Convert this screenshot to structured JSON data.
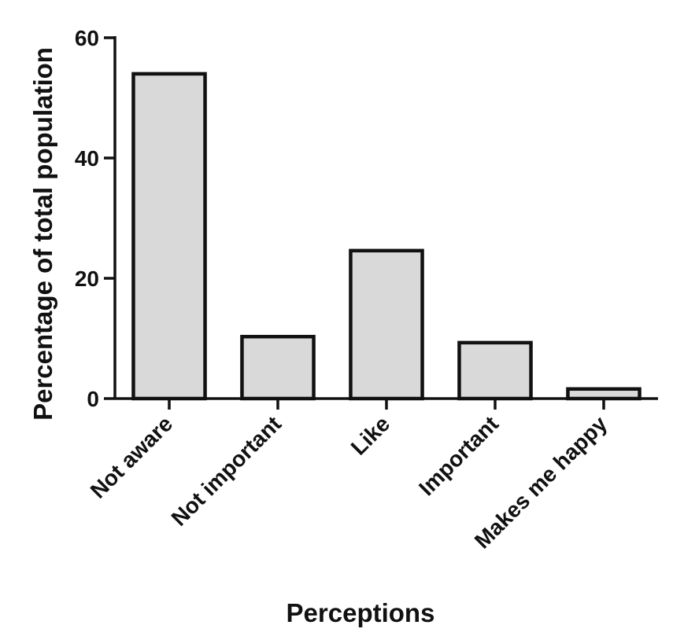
{
  "chart_data": {
    "type": "bar",
    "categories": [
      "Not aware",
      "Not important",
      "Like",
      "Important",
      "Makes me happy"
    ],
    "values": [
      54,
      10.3,
      24.6,
      9.3,
      1.6
    ],
    "xlabel": "Perceptions",
    "ylabel": "Percentage of total population",
    "ylim": [
      0,
      60
    ],
    "yticks": [
      0,
      20,
      40,
      60
    ],
    "grid": false,
    "colors": {
      "bar_fill": "#d9d9d9",
      "bar_stroke": "#111111",
      "axis": "#111111"
    }
  }
}
